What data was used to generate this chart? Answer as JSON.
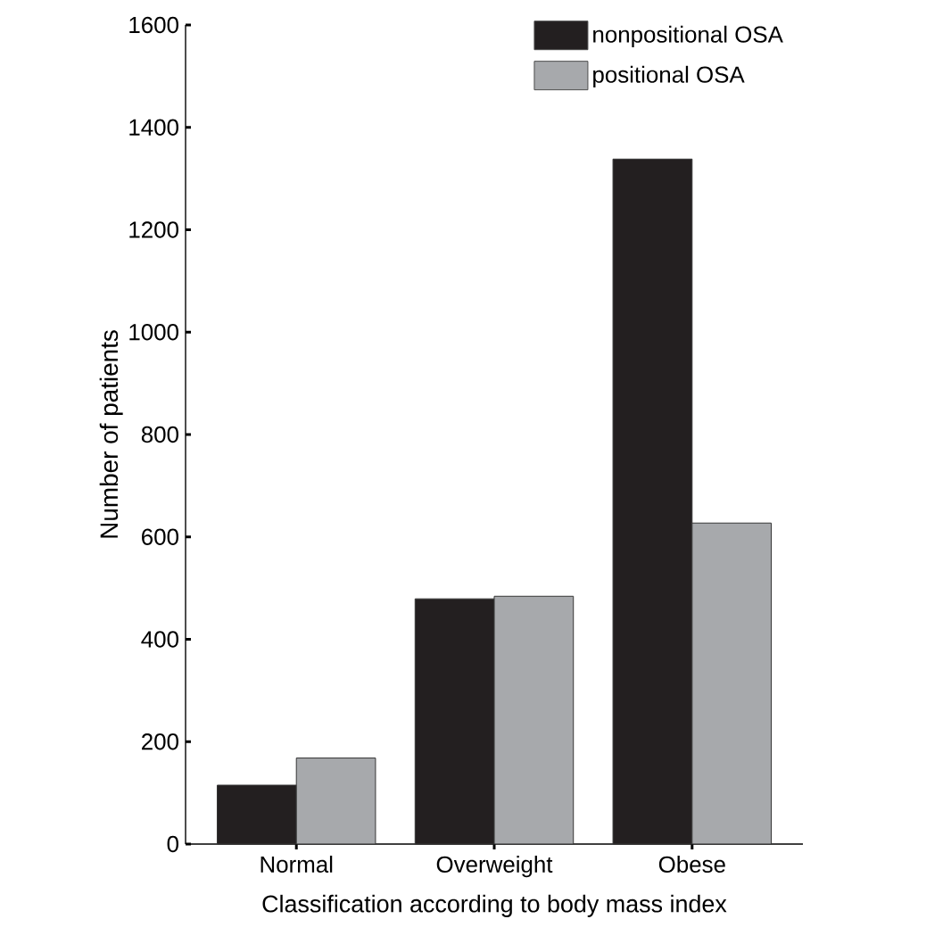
{
  "chart_data": {
    "type": "bar",
    "xlabel": "Classification according to body mass index",
    "ylabel": "Number of patients",
    "categories": [
      "Normal",
      "Overweight",
      "Obese"
    ],
    "series": [
      {
        "name": "nonpositional OSA",
        "color": "#231f20",
        "values": [
          115,
          479,
          1338
        ]
      },
      {
        "name": "positional OSA",
        "color": "#a7a9ac",
        "values": [
          168,
          484,
          627
        ]
      }
    ],
    "ylim": [
      0,
      1600
    ],
    "yticks": [
      0,
      200,
      400,
      600,
      800,
      1000,
      1200,
      1400,
      1600
    ],
    "grid": false,
    "legend": "top right"
  }
}
